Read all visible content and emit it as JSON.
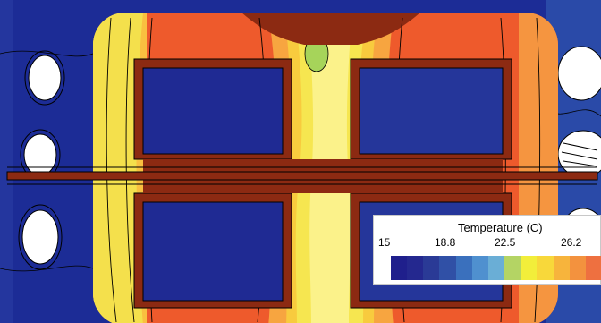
{
  "legend": {
    "title": "Temperature (C)",
    "ticks": [
      "15",
      "18.8",
      "22.5",
      "26.2"
    ],
    "colors": [
      "#1f1f8c",
      "#24288f",
      "#2a3a96",
      "#3050a6",
      "#3a70bd",
      "#4f90cf",
      "#6aaed6",
      "#b4d464",
      "#f2ee3a",
      "#f8d83a",
      "#f7b43c",
      "#f3923e",
      "#ee7040"
    ]
  },
  "colors": {
    "background": "#1c2c96",
    "cold": "#1f2a93",
    "brick": "#8c2a12",
    "hot": "#ee5a2c",
    "warm": "#f59540",
    "yellow": "#f6e650",
    "lightyellow": "#fbf28a",
    "green": "#a6d45a"
  }
}
